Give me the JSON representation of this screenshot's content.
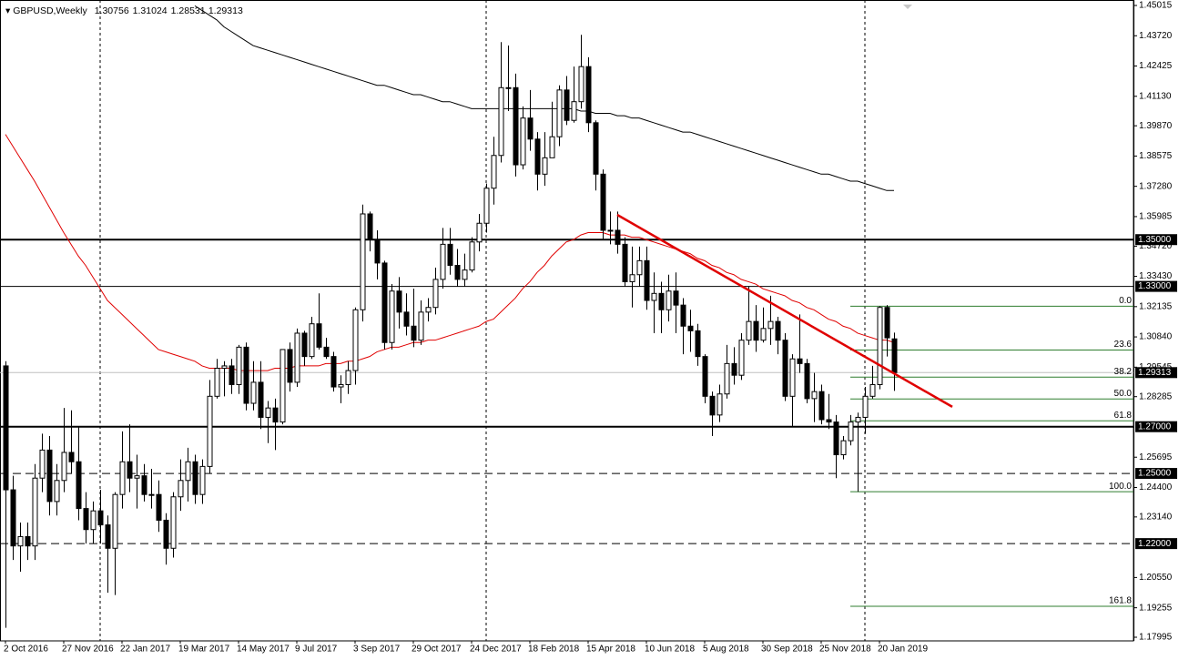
{
  "chart_data": {
    "type": "candlestick",
    "symbol": "GBPUSD,Weekly",
    "categories": [
      "2 Oct 2016",
      null,
      null,
      null,
      null,
      null,
      null,
      null,
      "27 Nov 2016",
      null,
      null,
      null,
      null,
      null,
      null,
      null,
      "22 Jan 2017",
      null,
      null,
      null,
      null,
      null,
      null,
      null,
      "19 Mar 2017",
      null,
      null,
      null,
      null,
      null,
      null,
      null,
      "14 May 2017",
      null,
      null,
      null,
      null,
      null,
      null,
      null,
      "9 Jul 2017",
      null,
      null,
      null,
      null,
      null,
      null,
      null,
      "3 Sep 2017",
      null,
      null,
      null,
      null,
      null,
      null,
      null,
      "29 Oct 2017",
      null,
      null,
      null,
      null,
      null,
      null,
      null,
      "24 Dec 2017",
      null,
      null,
      null,
      null,
      null,
      null,
      null,
      "18 Feb 2018",
      null,
      null,
      null,
      null,
      null,
      null,
      null,
      "15 Apr 2018",
      null,
      null,
      null,
      null,
      null,
      null,
      null,
      "10 Jun 2018",
      null,
      null,
      null,
      null,
      null,
      null,
      null,
      "5 Aug 2018",
      null,
      null,
      null,
      null,
      null,
      null,
      null,
      "30 Sep 2018",
      null,
      null,
      null,
      null,
      null,
      null,
      null,
      "25 Nov 2018",
      null,
      null,
      null,
      null,
      null,
      null,
      null,
      "20 Jan 2019",
      null,
      null
    ],
    "open": [
      1.296,
      1.243,
      1.219,
      1.223,
      1.219,
      1.248,
      1.26,
      1.238,
      1.247,
      1.259,
      1.255,
      1.235,
      1.226,
      1.234,
      1.228,
      1.218,
      1.241,
      1.255,
      1.248,
      1.249,
      1.241,
      1.241,
      1.23,
      1.218,
      1.24,
      1.247,
      1.255,
      1.241,
      1.253,
      1.283,
      1.295,
      1.296,
      1.288,
      1.304,
      1.28,
      1.289,
      1.274,
      1.278,
      1.272,
      1.303,
      1.289,
      1.31,
      1.3,
      1.314,
      1.304,
      1.3,
      1.287,
      1.288,
      1.294,
      1.32,
      1.361,
      1.35,
      1.34,
      1.306,
      1.328,
      1.319,
      1.313,
      1.307,
      1.319,
      1.321,
      1.333,
      1.348,
      1.339,
      1.333,
      1.337,
      1.349,
      1.357,
      1.372,
      1.386,
      1.415,
      1.415,
      1.382,
      1.402,
      1.393,
      1.378,
      1.385,
      1.394,
      1.414,
      1.401,
      1.409,
      1.424,
      1.4,
      1.378,
      1.354,
      1.354,
      1.348,
      1.332,
      1.335,
      1.341,
      1.324,
      1.327,
      1.32,
      1.328,
      1.322,
      1.313,
      1.311,
      1.3,
      1.283,
      1.275,
      1.284,
      1.297,
      1.292,
      1.307,
      1.315,
      1.307,
      1.312,
      1.315,
      1.307,
      1.283,
      1.299,
      1.297,
      1.282,
      1.285,
      1.273,
      1.272,
      1.258,
      1.264,
      1.272,
      1.274,
      1.283,
      1.288,
      1.321,
      1.30756
    ],
    "high": [
      1.298,
      1.249,
      1.229,
      1.229,
      1.254,
      1.267,
      1.266,
      1.254,
      1.278,
      1.277,
      1.27,
      1.242,
      1.238,
      1.243,
      1.232,
      1.242,
      1.268,
      1.271,
      1.258,
      1.254,
      1.252,
      1.247,
      1.233,
      1.242,
      1.256,
      1.261,
      1.258,
      1.256,
      1.29,
      1.299,
      1.298,
      1.299,
      1.305,
      1.306,
      1.298,
      1.298,
      1.281,
      1.282,
      1.303,
      1.306,
      1.312,
      1.311,
      1.317,
      1.327,
      1.308,
      1.302,
      1.292,
      1.298,
      1.321,
      1.365,
      1.362,
      1.354,
      1.341,
      1.331,
      1.334,
      1.327,
      1.329,
      1.324,
      1.325,
      1.338,
      1.355,
      1.355,
      1.346,
      1.344,
      1.351,
      1.361,
      1.374,
      1.394,
      1.4345,
      1.433,
      1.421,
      1.407,
      1.414,
      1.396,
      1.396,
      1.409,
      1.416,
      1.42,
      1.424,
      1.4376,
      1.428,
      1.401,
      1.38,
      1.362,
      1.362,
      1.351,
      1.347,
      1.347,
      1.347,
      1.336,
      1.332,
      1.335,
      1.336,
      1.325,
      1.32,
      1.314,
      1.301,
      1.285,
      1.288,
      1.305,
      1.304,
      1.31,
      1.33,
      1.322,
      1.321,
      1.326,
      1.317,
      1.31,
      1.301,
      1.318,
      1.299,
      1.293,
      1.288,
      1.284,
      1.275,
      1.266,
      1.275,
      1.276,
      1.287,
      1.296,
      1.3215,
      1.322,
      1.31024
    ],
    "low": [
      1.184,
      1.213,
      1.208,
      1.213,
      1.213,
      1.242,
      1.232,
      1.232,
      1.242,
      1.25,
      1.23,
      1.22,
      1.22,
      1.22,
      1.199,
      1.198,
      1.235,
      1.242,
      1.235,
      1.238,
      1.235,
      1.225,
      1.211,
      1.214,
      1.234,
      1.238,
      1.237,
      1.237,
      1.25,
      1.282,
      1.283,
      1.284,
      1.284,
      1.277,
      1.277,
      1.269,
      1.263,
      1.26,
      1.271,
      1.285,
      1.287,
      1.296,
      1.299,
      1.303,
      1.299,
      1.285,
      1.28,
      1.284,
      1.288,
      1.315,
      1.345,
      1.333,
      1.303,
      1.303,
      1.312,
      1.309,
      1.304,
      1.305,
      1.315,
      1.318,
      1.329,
      1.335,
      1.33,
      1.33,
      1.336,
      1.345,
      1.353,
      1.365,
      1.383,
      1.405,
      1.377,
      1.38,
      1.388,
      1.371,
      1.373,
      1.385,
      1.39,
      1.399,
      1.4,
      1.406,
      1.396,
      1.371,
      1.35,
      1.348,
      1.344,
      1.33,
      1.321,
      1.33,
      1.32,
      1.31,
      1.31,
      1.315,
      1.31,
      1.301,
      1.302,
      1.296,
      1.28,
      1.266,
      1.272,
      1.282,
      1.288,
      1.29,
      1.305,
      1.302,
      1.306,
      1.305,
      1.301,
      1.281,
      1.27,
      1.293,
      1.28,
      1.272,
      1.271,
      1.269,
      1.248,
      1.256,
      1.262,
      1.2422,
      1.267,
      1.282,
      1.286,
      1.3,
      1.28531
    ],
    "close": [
      1.243,
      1.219,
      1.223,
      1.219,
      1.248,
      1.26,
      1.238,
      1.247,
      1.259,
      1.255,
      1.235,
      1.226,
      1.234,
      1.228,
      1.218,
      1.241,
      1.255,
      1.248,
      1.249,
      1.241,
      1.241,
      1.23,
      1.218,
      1.24,
      1.247,
      1.255,
      1.241,
      1.253,
      1.283,
      1.295,
      1.296,
      1.288,
      1.304,
      1.28,
      1.289,
      1.274,
      1.278,
      1.272,
      1.303,
      1.289,
      1.31,
      1.3,
      1.314,
      1.304,
      1.3,
      1.287,
      1.288,
      1.294,
      1.32,
      1.361,
      1.35,
      1.34,
      1.306,
      1.328,
      1.319,
      1.313,
      1.307,
      1.319,
      1.321,
      1.333,
      1.348,
      1.339,
      1.333,
      1.337,
      1.349,
      1.357,
      1.372,
      1.386,
      1.415,
      1.415,
      1.382,
      1.402,
      1.393,
      1.378,
      1.385,
      1.394,
      1.414,
      1.401,
      1.409,
      1.424,
      1.4,
      1.378,
      1.354,
      1.354,
      1.348,
      1.332,
      1.335,
      1.341,
      1.324,
      1.327,
      1.32,
      1.328,
      1.322,
      1.313,
      1.311,
      1.3,
      1.283,
      1.275,
      1.284,
      1.297,
      1.292,
      1.307,
      1.315,
      1.307,
      1.312,
      1.315,
      1.307,
      1.283,
      1.299,
      1.297,
      1.282,
      1.285,
      1.273,
      1.272,
      1.258,
      1.264,
      1.272,
      1.274,
      1.283,
      1.288,
      1.321,
      1.308,
      1.29313
    ],
    "indicators": [
      {
        "color": "#e00000",
        "values": [
          1.395,
          1.39,
          1.385,
          1.38,
          1.375,
          1.3695,
          1.364,
          1.3585,
          1.353,
          1.348,
          1.343,
          1.339,
          1.334,
          1.329,
          1.324,
          1.321,
          1.318,
          1.315,
          1.312,
          1.309,
          1.306,
          1.303,
          1.302,
          1.301,
          1.3,
          1.299,
          1.298,
          1.296,
          1.295,
          1.295,
          1.295,
          1.295,
          1.294,
          1.294,
          1.294,
          1.294,
          1.294,
          1.295,
          1.295,
          1.295,
          1.296,
          1.296,
          1.296,
          1.296,
          1.297,
          1.297,
          1.297,
          1.298,
          1.298,
          1.299,
          1.3,
          1.302,
          1.303,
          1.304,
          1.304,
          1.305,
          1.306,
          1.306,
          1.307,
          1.307,
          1.308,
          1.309,
          1.31,
          1.311,
          1.312,
          1.313,
          1.315,
          1.316,
          1.319,
          1.322,
          1.325,
          1.329,
          1.332,
          1.336,
          1.339,
          1.343,
          1.346,
          1.349,
          1.35,
          1.352,
          1.353,
          1.353,
          1.353,
          1.352,
          1.352,
          1.352,
          1.351,
          1.351,
          1.35,
          1.349,
          1.348,
          1.347,
          1.346,
          1.345,
          1.344,
          1.342,
          1.341,
          1.339,
          1.338,
          1.336,
          1.335,
          1.333,
          1.332,
          1.331,
          1.329,
          1.328,
          1.327,
          1.326,
          1.324,
          1.323,
          1.321,
          1.32,
          1.318,
          1.316,
          1.315,
          1.313,
          1.312,
          1.31,
          1.309,
          1.308,
          1.307,
          1.307,
          1.306
        ]
      },
      {
        "color": "#000000",
        "values": [
          null,
          null,
          null,
          null,
          null,
          null,
          null,
          null,
          null,
          null,
          null,
          null,
          null,
          null,
          null,
          null,
          null,
          null,
          null,
          null,
          null,
          null,
          null,
          null,
          null,
          null,
          1.45,
          1.448,
          1.446,
          1.444,
          1.441,
          1.439,
          1.437,
          1.435,
          1.433,
          1.432,
          1.431,
          1.43,
          1.429,
          1.428,
          1.427,
          1.426,
          1.425,
          1.424,
          1.423,
          1.422,
          1.421,
          1.42,
          1.419,
          1.418,
          1.417,
          1.416,
          1.416,
          1.415,
          1.414,
          1.413,
          1.412,
          1.412,
          1.411,
          1.41,
          1.409,
          1.409,
          1.408,
          1.407,
          1.406,
          1.406,
          1.406,
          1.406,
          1.406,
          1.406,
          1.406,
          1.406,
          1.406,
          1.406,
          1.406,
          1.406,
          1.406,
          1.406,
          1.406,
          1.405,
          1.405,
          1.404,
          1.404,
          1.404,
          1.403,
          1.403,
          1.402,
          1.402,
          1.401,
          1.4,
          1.399,
          1.398,
          1.397,
          1.396,
          1.396,
          1.395,
          1.394,
          1.393,
          1.392,
          1.391,
          1.39,
          1.389,
          1.388,
          1.387,
          1.386,
          1.385,
          1.384,
          1.383,
          1.382,
          1.381,
          1.38,
          1.379,
          1.378,
          1.378,
          1.377,
          1.376,
          1.375,
          1.375,
          1.374,
          1.373,
          1.372,
          1.371,
          1.371
        ]
      }
    ],
    "ylim": [
      1.17995,
      1.45015
    ],
    "yticks": [
      1.45015,
      {
        "value": 1.4372,
        "label": "1.43720"
      },
      1.42425,
      {
        "value": 1.4113,
        "label": "1.41130"
      },
      {
        "value": 1.3987,
        "label": "1.39870"
      },
      1.38575,
      {
        "value": 1.3728,
        "label": "1.37280"
      },
      1.35985,
      {
        "value": 1.3472,
        "label": "1.34720"
      },
      {
        "value": 1.3343,
        "label": "1.33430"
      },
      1.32135,
      {
        "value": 1.3084,
        "label": "1.30840"
      },
      1.29545,
      1.28285,
      1.25695,
      {
        "value": 1.244,
        "label": "1.24400"
      },
      {
        "value": 1.2314,
        "label": "1.23140"
      },
      {
        "value": 1.2055,
        "label": "1.20550"
      },
      1.19255,
      1.17995
    ],
    "levels": [
      {
        "value": 1.35,
        "label": "1.35000",
        "width": 2
      },
      {
        "value": 1.33,
        "label": "1.33000",
        "width": 1
      },
      {
        "value": 1.27,
        "label": "1.27000",
        "width": 2
      },
      {
        "value": 1.25,
        "label": "1.25000",
        "width": 1,
        "dashed": true
      },
      {
        "value": 1.22,
        "label": "1.22000",
        "width": 1,
        "dashed": true
      }
    ],
    "fibonacci": {
      "high": 1.3215,
      "low": 1.2422,
      "color": "#2f7d2f",
      "levels": [
        {
          "value": 0,
          "label": "0.0"
        },
        23.6,
        38.2,
        {
          "value": 50,
          "label": "50.0"
        },
        61.8,
        {
          "value": 100,
          "label": "100.0"
        },
        161.8
      ]
    },
    "trendline": {
      "color": "#e00000",
      "start": {
        "bar": 84,
        "price": 1.3606
      },
      "end": {
        "bar": 130,
        "price": 1.2785
      }
    }
  }
}
